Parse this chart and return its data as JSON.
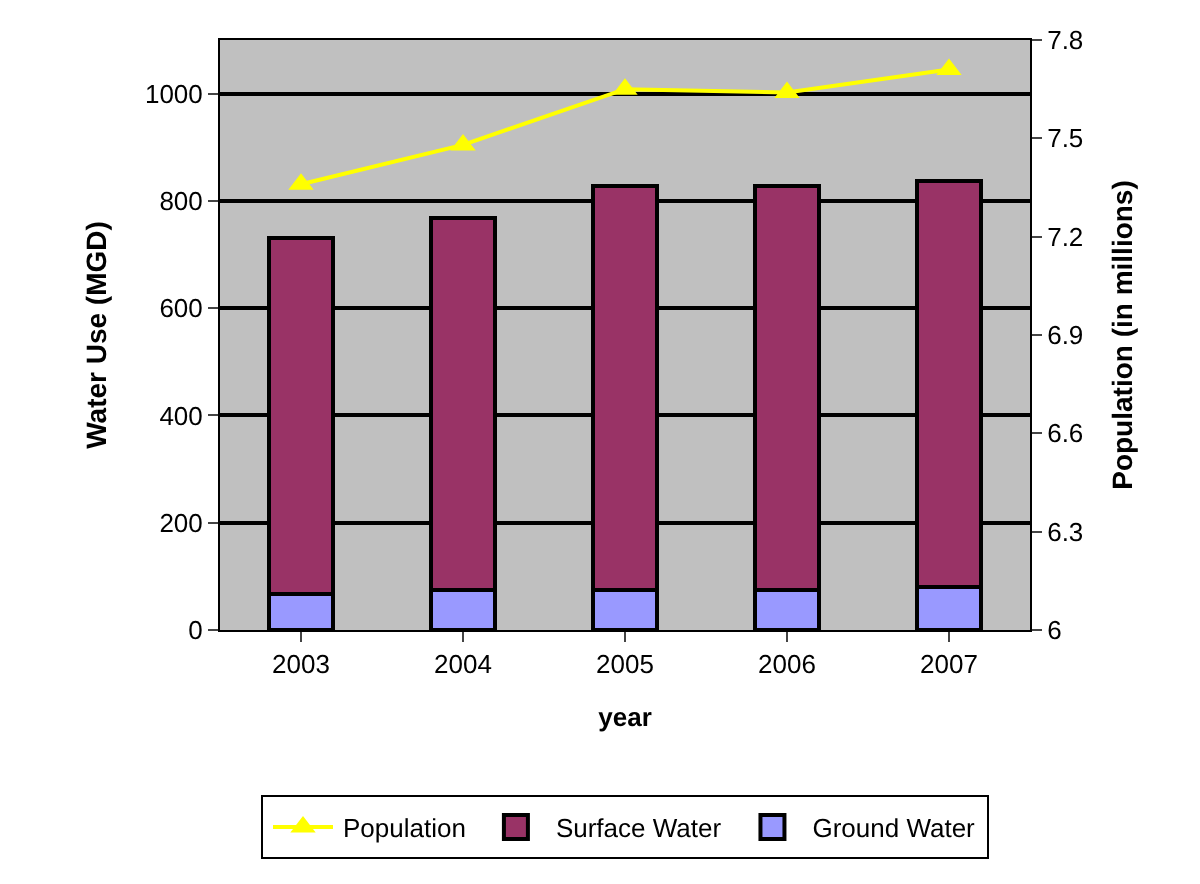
{
  "chart_data": {
    "type": "bar",
    "stacked": true,
    "categories": [
      "2003",
      "2004",
      "2005",
      "2006",
      "2007"
    ],
    "xlabel": "year",
    "ylabel": "Water Use (MGD)",
    "y2label": "Population (in millions)",
    "series": [
      {
        "name": "Ground Water",
        "color": "#9999ff",
        "values": [
          68,
          75,
          75,
          75,
          81
        ]
      },
      {
        "name": "Surface Water",
        "color": "#993366",
        "values": [
          663,
          694,
          753,
          753,
          756
        ]
      },
      {
        "name": "Population",
        "type": "line",
        "axis": "y2",
        "color": "#ffff00",
        "marker": "triangle",
        "values": [
          7.36,
          7.48,
          7.65,
          7.64,
          7.71
        ]
      }
    ],
    "ylim": [
      0,
      1100
    ],
    "yticks": [
      0,
      200,
      400,
      600,
      800,
      1000
    ],
    "y2lim": [
      6,
      7.8
    ],
    "y2ticks": [
      6,
      6.3,
      6.6,
      6.9,
      7.2,
      7.5,
      7.8
    ],
    "grid": "y",
    "legend": "bottom"
  }
}
